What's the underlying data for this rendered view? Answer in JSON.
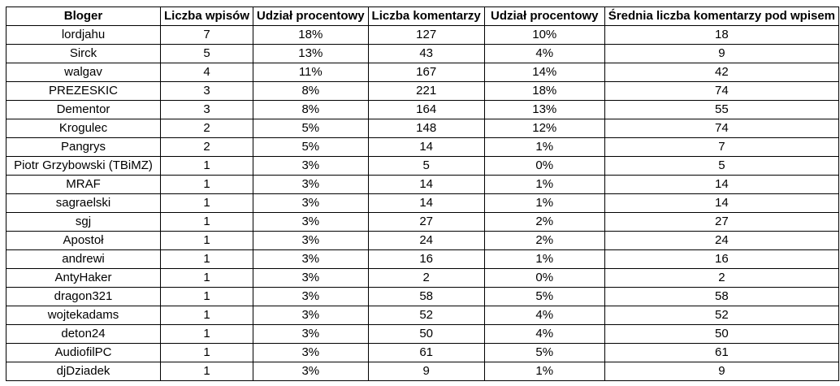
{
  "table": {
    "headers": [
      "Bloger",
      "Liczba wpisów",
      "Udział procentowy",
      "Liczba komentarzy",
      "Udział procentowy",
      "Średnia liczba komentarzy pod wpisem"
    ],
    "rows": [
      [
        "lordjahu",
        "7",
        "18%",
        "127",
        "10%",
        "18"
      ],
      [
        "Sirck",
        "5",
        "13%",
        "43",
        "4%",
        "9"
      ],
      [
        "walgav",
        "4",
        "11%",
        "167",
        "14%",
        "42"
      ],
      [
        "PREZESKIC",
        "3",
        "8%",
        "221",
        "18%",
        "74"
      ],
      [
        "Dementor",
        "3",
        "8%",
        "164",
        "13%",
        "55"
      ],
      [
        "Krogulec",
        "2",
        "5%",
        "148",
        "12%",
        "74"
      ],
      [
        "Pangrys",
        "2",
        "5%",
        "14",
        "1%",
        "7"
      ],
      [
        "Piotr Grzybowski (TBiMZ)",
        "1",
        "3%",
        "5",
        "0%",
        "5"
      ],
      [
        "MRAF",
        "1",
        "3%",
        "14",
        "1%",
        "14"
      ],
      [
        "sagraelski",
        "1",
        "3%",
        "14",
        "1%",
        "14"
      ],
      [
        "sgj",
        "1",
        "3%",
        "27",
        "2%",
        "27"
      ],
      [
        "Apostoł",
        "1",
        "3%",
        "24",
        "2%",
        "24"
      ],
      [
        "andrewi",
        "1",
        "3%",
        "16",
        "1%",
        "16"
      ],
      [
        "AntyHaker",
        "1",
        "3%",
        "2",
        "0%",
        "2"
      ],
      [
        "dragon321",
        "1",
        "3%",
        "58",
        "5%",
        "58"
      ],
      [
        "wojtekadams",
        "1",
        "3%",
        "52",
        "4%",
        "52"
      ],
      [
        "deton24",
        "1",
        "3%",
        "50",
        "4%",
        "50"
      ],
      [
        "AudiofilPC",
        "1",
        "3%",
        "61",
        "5%",
        "61"
      ],
      [
        "djDziadek",
        "1",
        "3%",
        "9",
        "1%",
        "9"
      ]
    ]
  }
}
